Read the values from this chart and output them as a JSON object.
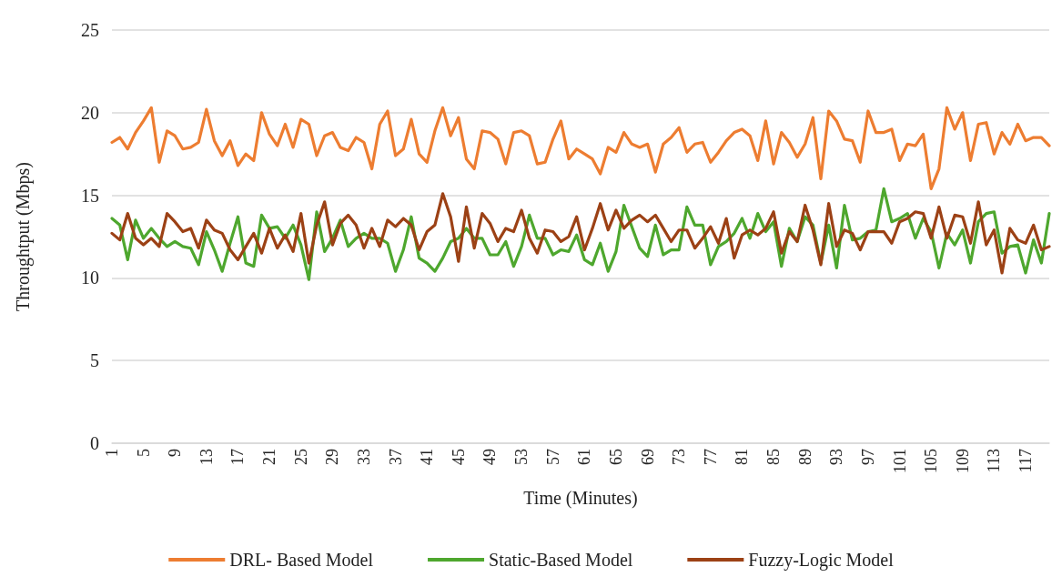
{
  "chart_data": {
    "type": "line",
    "xlabel": "Time (Minutes)",
    "ylabel": "Throughtput (Mbps)",
    "ylim": [
      0,
      25
    ],
    "yticks": [
      0,
      5,
      10,
      15,
      20,
      25
    ],
    "grid": "y",
    "legend": "bottom",
    "marker": "none",
    "line_style": "solid",
    "categories": [
      "1",
      null,
      null,
      null,
      "5",
      null,
      null,
      null,
      "9",
      null,
      null,
      null,
      "13",
      null,
      null,
      null,
      "17",
      null,
      null,
      null,
      "21",
      null,
      null,
      null,
      "25",
      null,
      null,
      null,
      "29",
      null,
      null,
      null,
      "33",
      null,
      null,
      null,
      "37",
      null,
      null,
      null,
      "41",
      null,
      null,
      null,
      "45",
      null,
      null,
      null,
      "49",
      null,
      null,
      null,
      "53",
      null,
      null,
      null,
      "57",
      null,
      null,
      null,
      "61",
      null,
      null,
      null,
      "65",
      null,
      null,
      null,
      "69",
      null,
      null,
      null,
      "73",
      null,
      null,
      null,
      "77",
      null,
      null,
      null,
      "81",
      null,
      null,
      null,
      "85",
      null,
      null,
      null,
      "89",
      null,
      null,
      null,
      "93",
      null,
      null,
      null,
      "97",
      null,
      null,
      null,
      "101",
      null,
      null,
      null,
      "105",
      null,
      null,
      null,
      "109",
      null,
      null,
      null,
      "113",
      null,
      null,
      null,
      "117",
      null,
      null,
      null
    ],
    "series": [
      {
        "name": "DRL- Based Model",
        "color": "#ed7d31",
        "values": [
          18.2,
          18.5,
          17.8,
          18.8,
          19.5,
          20.3,
          17.0,
          18.9,
          18.6,
          17.8,
          17.9,
          18.2,
          20.2,
          18.3,
          17.4,
          18.3,
          16.8,
          17.5,
          17.1,
          20.0,
          18.7,
          18.0,
          19.3,
          17.9,
          19.6,
          19.3,
          17.4,
          18.6,
          18.8,
          17.9,
          17.7,
          18.5,
          18.2,
          16.6,
          19.3,
          20.1,
          17.4,
          17.8,
          19.6,
          17.5,
          17.0,
          18.9,
          20.3,
          18.6,
          19.7,
          17.2,
          16.6,
          18.9,
          18.8,
          18.4,
          16.9,
          18.8,
          18.9,
          18.6,
          16.9,
          17.0,
          18.4,
          19.5,
          17.2,
          17.8,
          17.5,
          17.2,
          16.3,
          17.9,
          17.6,
          18.8,
          18.1,
          17.9,
          18.1,
          16.4,
          18.1,
          18.5,
          19.1,
          17.6,
          18.1,
          18.2,
          17.0,
          17.6,
          18.3,
          18.8,
          19.0,
          18.6,
          17.1,
          19.5,
          16.9,
          18.8,
          18.2,
          17.3,
          18.1,
          19.7,
          16.0,
          20.1,
          19.5,
          18.4,
          18.3,
          17.0,
          20.1,
          18.8,
          18.8,
          19.0,
          17.1,
          18.1,
          18.0,
          18.7,
          15.4,
          16.6,
          20.3,
          19.0,
          20.0,
          17.1,
          19.3,
          19.4,
          17.5,
          18.8,
          18.1,
          19.3,
          18.3,
          18.5,
          18.5,
          18.0
        ]
      },
      {
        "name": "Static-Based Model",
        "color": "#4ea72e",
        "values": [
          13.6,
          13.2,
          11.1,
          13.5,
          12.4,
          13.0,
          12.4,
          11.9,
          12.2,
          11.9,
          11.8,
          10.8,
          12.8,
          11.7,
          10.4,
          12.1,
          13.7,
          10.9,
          10.7,
          13.8,
          13.0,
          13.1,
          12.4,
          13.2,
          12.0,
          9.9,
          14.0,
          11.6,
          12.4,
          13.5,
          11.9,
          12.4,
          12.7,
          12.4,
          12.4,
          12.1,
          10.4,
          11.7,
          13.7,
          11.2,
          10.9,
          10.4,
          11.2,
          12.2,
          12.4,
          13.0,
          12.4,
          12.4,
          11.4,
          11.4,
          12.2,
          10.7,
          11.9,
          13.8,
          12.4,
          12.4,
          11.4,
          11.7,
          11.6,
          12.6,
          11.1,
          10.8,
          12.1,
          10.4,
          11.6,
          14.4,
          13.1,
          11.8,
          11.3,
          13.2,
          11.4,
          11.7,
          11.7,
          14.3,
          13.2,
          13.2,
          10.8,
          11.9,
          12.2,
          12.7,
          13.6,
          12.4,
          13.9,
          12.8,
          13.4,
          10.7,
          13.0,
          12.2,
          13.7,
          13.2,
          10.9,
          13.2,
          10.6,
          14.4,
          12.3,
          12.4,
          12.8,
          12.9,
          15.4,
          13.4,
          13.6,
          13.9,
          12.4,
          13.6,
          12.8,
          10.6,
          12.7,
          12.0,
          12.9,
          10.9,
          13.4,
          13.9,
          14.0,
          11.5,
          11.9,
          12.0,
          10.3,
          12.3,
          10.9,
          13.9
        ]
      },
      {
        "name": "Fuzzy-Logic Model",
        "color": "#9c4115",
        "values": [
          12.7,
          12.3,
          13.9,
          12.4,
          12.0,
          12.4,
          11.9,
          13.9,
          13.4,
          12.8,
          13.0,
          11.8,
          13.5,
          12.9,
          12.7,
          11.7,
          11.1,
          11.9,
          12.7,
          11.5,
          13.0,
          11.8,
          12.6,
          11.6,
          13.9,
          10.9,
          13.2,
          14.6,
          12.0,
          13.3,
          13.8,
          13.2,
          11.8,
          13.0,
          11.9,
          13.5,
          13.1,
          13.6,
          13.2,
          11.7,
          12.8,
          13.2,
          15.1,
          13.7,
          11.0,
          14.3,
          11.8,
          13.9,
          13.3,
          12.2,
          13.0,
          12.8,
          14.1,
          12.4,
          11.5,
          12.9,
          12.8,
          12.2,
          12.5,
          13.7,
          11.7,
          13.0,
          14.5,
          12.9,
          14.1,
          13.0,
          13.5,
          13.8,
          13.4,
          13.8,
          13.0,
          12.2,
          12.9,
          12.9,
          11.8,
          12.4,
          13.1,
          12.1,
          13.6,
          11.2,
          12.6,
          12.9,
          12.6,
          13.0,
          14.0,
          11.5,
          12.8,
          12.2,
          14.4,
          12.9,
          10.8,
          14.5,
          11.9,
          12.9,
          12.7,
          11.7,
          12.8,
          12.8,
          12.8,
          12.1,
          13.4,
          13.6,
          14.0,
          13.9,
          12.4,
          14.3,
          12.4,
          13.8,
          13.7,
          12.1,
          14.6,
          12.0,
          12.9,
          10.3,
          13.0,
          12.3,
          12.1,
          13.2,
          11.7,
          11.9
        ]
      }
    ]
  }
}
